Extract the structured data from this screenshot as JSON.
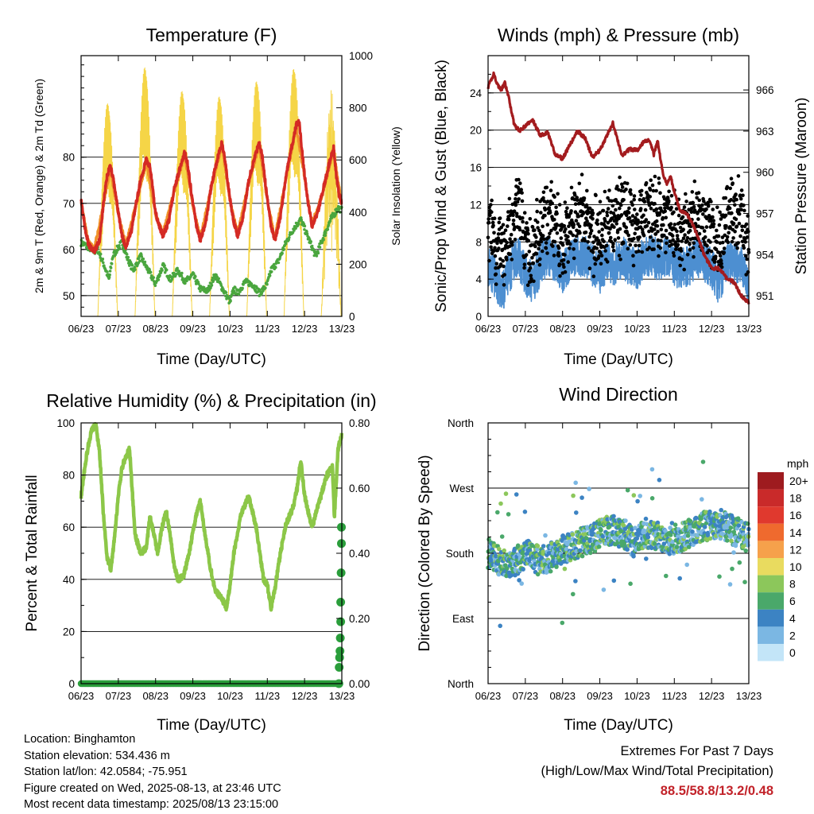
{
  "x_ticks": [
    "06/23",
    "07/23",
    "08/23",
    "09/23",
    "10/23",
    "11/23",
    "12/23",
    "13/23"
  ],
  "chart_data": [
    {
      "type": "line",
      "title": "Temperature (F)",
      "xlabel": "Time (Day/UTC)",
      "ylabel": "2m & 9m T (Red, Orange) & 2m Td (Green)",
      "ylabel_right": "Solar Insolation (Yellow)",
      "ylim": [
        45.5,
        102
      ],
      "yticks": [
        50,
        60,
        70,
        80
      ],
      "ylim_right": [
        0,
        1000
      ],
      "yticks_right": [
        0,
        200,
        400,
        600,
        800,
        1000
      ],
      "xlim": [
        6,
        13
      ],
      "series": [
        {
          "color": "#d42a24",
          "x": [
            6.0,
            6.1,
            6.2,
            6.35,
            6.5,
            6.6,
            6.7,
            6.78,
            6.85,
            7.0,
            7.1,
            7.2,
            7.35,
            7.5,
            7.6,
            7.75,
            7.85,
            8.0,
            8.1,
            8.2,
            8.35,
            8.5,
            8.7,
            8.78,
            8.85,
            9.0,
            9.1,
            9.2,
            9.35,
            9.5,
            9.7,
            9.78,
            9.85,
            10.0,
            10.1,
            10.2,
            10.35,
            10.5,
            10.7,
            10.78,
            10.85,
            11.0,
            11.1,
            11.2,
            11.35,
            11.5,
            11.7,
            11.78,
            11.85,
            12.0,
            12.1,
            12.2,
            12.35,
            12.5,
            12.7,
            12.78,
            12.85,
            12.92,
            13.0
          ],
          "y": [
            71,
            65,
            61,
            59.5,
            62,
            70,
            76,
            78,
            76,
            68,
            63,
            60.5,
            64,
            71,
            75,
            79.5,
            78,
            68,
            65,
            63,
            66,
            73,
            79,
            81,
            79,
            70,
            65,
            62,
            66,
            74,
            81,
            83,
            80,
            71,
            66,
            63,
            67,
            75,
            81,
            83,
            81,
            71,
            65,
            62,
            67,
            76,
            84,
            87,
            88,
            76,
            70,
            65,
            68,
            73,
            80,
            82,
            76,
            72,
            70
          ]
        },
        {
          "color": "#f0922b",
          "x": [
            6.0,
            6.2,
            6.35,
            6.6,
            6.78,
            7.0,
            7.2,
            7.5,
            7.75,
            8.0,
            8.2,
            8.5,
            8.78,
            9.0,
            9.2,
            9.5,
            9.78,
            10.0,
            10.2,
            10.5,
            10.78,
            11.0,
            11.2,
            11.5,
            11.78,
            12.0,
            12.2,
            12.5,
            12.78,
            13.0
          ],
          "y": [
            70.5,
            61.5,
            60,
            69.5,
            77.5,
            67.5,
            61,
            70.5,
            79,
            67.5,
            63.5,
            72.5,
            80.5,
            69.5,
            62.5,
            73.5,
            82.5,
            70.5,
            63.5,
            74.5,
            82.5,
            70.5,
            62.5,
            75.5,
            86.5,
            75.5,
            65.5,
            72.5,
            81.5,
            69.5
          ]
        },
        {
          "color": "#4aa63e",
          "x": [
            6.0,
            6.2,
            6.35,
            6.45,
            6.6,
            6.75,
            6.85,
            7.0,
            7.1,
            7.25,
            7.4,
            7.6,
            7.8,
            8.0,
            8.2,
            8.4,
            8.6,
            8.8,
            9.0,
            9.2,
            9.4,
            9.6,
            9.8,
            10.0,
            10.1,
            10.2,
            10.4,
            10.6,
            10.8,
            11.0,
            11.1,
            11.3,
            11.5,
            11.7,
            11.9,
            12.1,
            12.3,
            12.5,
            12.7,
            12.9,
            13.0
          ],
          "y": [
            61.5,
            60.5,
            59.5,
            60,
            57,
            53.5,
            58.5,
            60.5,
            61.5,
            58,
            55.5,
            58.5,
            55.5,
            52.5,
            56.5,
            53.5,
            55.5,
            53,
            54.5,
            51.5,
            51,
            54.5,
            51.5,
            48.5,
            51.5,
            50.5,
            53,
            52.5,
            50.5,
            52.5,
            55.5,
            57.5,
            61.5,
            64.5,
            66.5,
            62.5,
            58.5,
            62.5,
            66.5,
            69,
            68.5
          ]
        },
        {
          "color": "#f5d547",
          "days": [
            6,
            7,
            8,
            9,
            10,
            11,
            12
          ],
          "peaks": [
            820,
            960,
            870,
            850,
            910,
            960,
            880
          ]
        }
      ]
    },
    {
      "type": "line",
      "title": "Winds (mph) & Pressure (mb)",
      "xlabel": "Time (Day/UTC)",
      "ylabel": "Sonic/Prop Wind & Gust (Blue, Black)",
      "ylabel_right": "Station Pressure (Maroon)",
      "ylim": [
        0,
        28
      ],
      "yticks": [
        0,
        4,
        8,
        12,
        16,
        20,
        24
      ],
      "ylim_right": [
        949.5,
        968.5
      ],
      "yticks_right": [
        951,
        954,
        957,
        960,
        963,
        966
      ],
      "xlim": [
        6,
        13
      ],
      "series": [
        {
          "color": "#4d8fd1",
          "x": [
            6.0,
            6.2,
            6.4,
            6.6,
            6.8,
            7.0,
            7.2,
            7.4,
            7.6,
            7.8,
            8.0,
            8.2,
            8.4,
            8.6,
            8.8,
            9.0,
            9.2,
            9.4,
            9.6,
            9.8,
            10.0,
            10.2,
            10.4,
            10.6,
            10.8,
            11.0,
            11.2,
            11.4,
            11.6,
            11.8,
            12.0,
            12.2,
            12.4,
            12.6,
            12.8,
            13.0
          ],
          "y": [
            5.5,
            4,
            2.5,
            5,
            6.5,
            4.5,
            3.5,
            5.5,
            6.5,
            6,
            4.5,
            6,
            6.5,
            6.5,
            5.5,
            4.5,
            6,
            5.5,
            6.5,
            5.5,
            5,
            6.5,
            6.5,
            6,
            6.5,
            5.5,
            5,
            5.5,
            6.5,
            6,
            5,
            3.5,
            6,
            5.5,
            6,
            3
          ]
        },
        {
          "color": "#000000",
          "x": [
            6.0,
            6.2,
            6.4,
            6.6,
            6.8,
            7.0,
            7.2,
            7.4,
            7.6,
            7.8,
            8.0,
            8.2,
            8.4,
            8.6,
            8.8,
            9.0,
            9.2,
            9.4,
            9.6,
            9.8,
            10.0,
            10.2,
            10.4,
            10.6,
            10.8,
            11.0,
            11.2,
            11.4,
            11.6,
            11.8,
            12.0,
            12.2,
            12.4,
            12.6,
            12.8,
            13.0
          ],
          "y": [
            10.5,
            8,
            6.5,
            9.5,
            11.5,
            8,
            6.5,
            9.5,
            11,
            10.5,
            7.5,
            10,
            11,
            10.5,
            9,
            8,
            10,
            10,
            11,
            10,
            9,
            11,
            11.5,
            10,
            11,
            9.5,
            9,
            10,
            11,
            10.5,
            9,
            8,
            10,
            11,
            10.5,
            7
          ]
        },
        {
          "color": "#a31b1e",
          "x": [
            6.0,
            6.1,
            6.15,
            6.25,
            6.35,
            6.45,
            6.55,
            6.7,
            6.85,
            7.0,
            7.2,
            7.4,
            7.6,
            7.8,
            8.0,
            8.2,
            8.4,
            8.6,
            8.8,
            9.0,
            9.2,
            9.35,
            9.45,
            9.6,
            9.8,
            10.0,
            10.2,
            10.35,
            10.45,
            10.55,
            10.7,
            10.8,
            10.9,
            11.0,
            11.15,
            11.3,
            11.45,
            11.6,
            11.8,
            12.0,
            12.2,
            12.4,
            12.6,
            12.8,
            13.0
          ],
          "y": [
            966.2,
            966.8,
            967.2,
            966.4,
            966.0,
            966.5,
            965.5,
            963.5,
            963.0,
            963.4,
            963.8,
            962.7,
            962.9,
            961.3,
            961.0,
            962.0,
            963.0,
            962.5,
            961.1,
            961.6,
            962.7,
            963.6,
            962.6,
            961.2,
            961.7,
            961.6,
            962.3,
            962.3,
            961.3,
            962.3,
            959.8,
            959.2,
            959.7,
            958.6,
            957.2,
            957.1,
            956.5,
            955.5,
            954.0,
            953.0,
            953.0,
            952.3,
            952.0,
            951.0,
            950.5
          ]
        }
      ]
    },
    {
      "type": "line",
      "title": "Relative Humidity (%) & Precipitation (in)",
      "xlabel": "Time (Day/UTC)",
      "ylabel": "Percent & Total Rainfall",
      "ylim": [
        0,
        100
      ],
      "yticks": [
        0,
        20,
        40,
        60,
        80,
        100
      ],
      "ylim_right": [
        0,
        0.8
      ],
      "yticks_right": [
        "0.00",
        "0.20",
        "0.40",
        "0.60",
        "0.80"
      ],
      "xlim": [
        6,
        13
      ],
      "series": [
        {
          "color": "#8cc748",
          "x": [
            6.0,
            6.1,
            6.2,
            6.3,
            6.4,
            6.5,
            6.6,
            6.7,
            6.8,
            6.9,
            7.0,
            7.1,
            7.2,
            7.3,
            7.45,
            7.6,
            7.75,
            7.85,
            7.95,
            8.05,
            8.15,
            8.25,
            8.3,
            8.4,
            8.5,
            8.6,
            8.75,
            8.9,
            9.0,
            9.1,
            9.2,
            9.3,
            9.45,
            9.6,
            9.8,
            9.9,
            10.0,
            10.1,
            10.2,
            10.3,
            10.5,
            10.7,
            10.9,
            11.0,
            11.1,
            11.2,
            11.35,
            11.5,
            11.7,
            11.8,
            11.9,
            12.0,
            12.2,
            12.4,
            12.6,
            12.75,
            12.8,
            12.9,
            13.0
          ],
          "y": [
            72,
            83,
            92,
            98,
            99,
            88,
            65,
            48,
            44,
            56,
            72,
            83,
            87,
            90,
            57,
            50,
            52,
            64,
            58,
            50,
            58,
            65,
            65,
            56,
            45,
            40,
            41,
            50,
            58,
            65,
            70,
            60,
            46,
            36,
            32,
            29,
            38,
            50,
            58,
            65,
            72,
            60,
            40,
            38,
            29,
            36,
            50,
            61,
            68,
            75,
            86,
            72,
            60,
            70,
            80,
            83,
            64,
            90,
            96
          ]
        },
        {
          "color": "#2a9e3b",
          "type": "scatter",
          "rain_x": [
            12.92,
            12.93,
            12.94,
            12.95,
            12.96,
            12.97,
            12.97,
            12.98,
            12.99,
            12.99
          ],
          "rain_y": [
            0.0,
            0.05,
            0.08,
            0.1,
            0.14,
            0.19,
            0.25,
            0.34,
            0.43,
            0.48
          ]
        }
      ]
    },
    {
      "type": "scatter",
      "title": "Wind Direction",
      "xlabel": "Time (Day/UTC)",
      "ylabel": "Direction (Colored By Speed)",
      "yticks": [
        "North",
        "East",
        "South",
        "West",
        "North"
      ],
      "ylim": [
        0,
        360
      ],
      "xlim": [
        6,
        13
      ],
      "speed_baseline": [
        180,
        170,
        165,
        172,
        178,
        168,
        175,
        185,
        190,
        195,
        200,
        210,
        212,
        207,
        195,
        208,
        205,
        198,
        200,
        205,
        215,
        218,
        222,
        215,
        208,
        200
      ],
      "legend_title": "mph",
      "legend_labels": [
        "20+",
        "18",
        "16",
        "14",
        "12",
        "10",
        "8",
        "6",
        "4",
        "2",
        "0"
      ],
      "legend_colors": [
        "#9e1b1f",
        "#c92a2a",
        "#e0392e",
        "#ef6a2e",
        "#f6a14b",
        "#e9db5f",
        "#8cc75b",
        "#4aa86a",
        "#3c83c3",
        "#7bb7e3",
        "#c3e5f8"
      ]
    }
  ],
  "info": {
    "location": "Location: Binghamton",
    "elevation": "Station elevation: 534.436 m",
    "latlon": "Station lat/lon: 42.0584; -75.951",
    "created": "Figure created on Wed, 2025-08-13, at 23:46 UTC",
    "recent": "Most recent data timestamp: 2025/08/13 23:15:00"
  },
  "extremes": {
    "title": "Extremes For Past 7 Days",
    "subtitle": "(High/Low/Max Wind/Total Precipitation)",
    "values": "88.5/58.8/13.2/0.48"
  }
}
